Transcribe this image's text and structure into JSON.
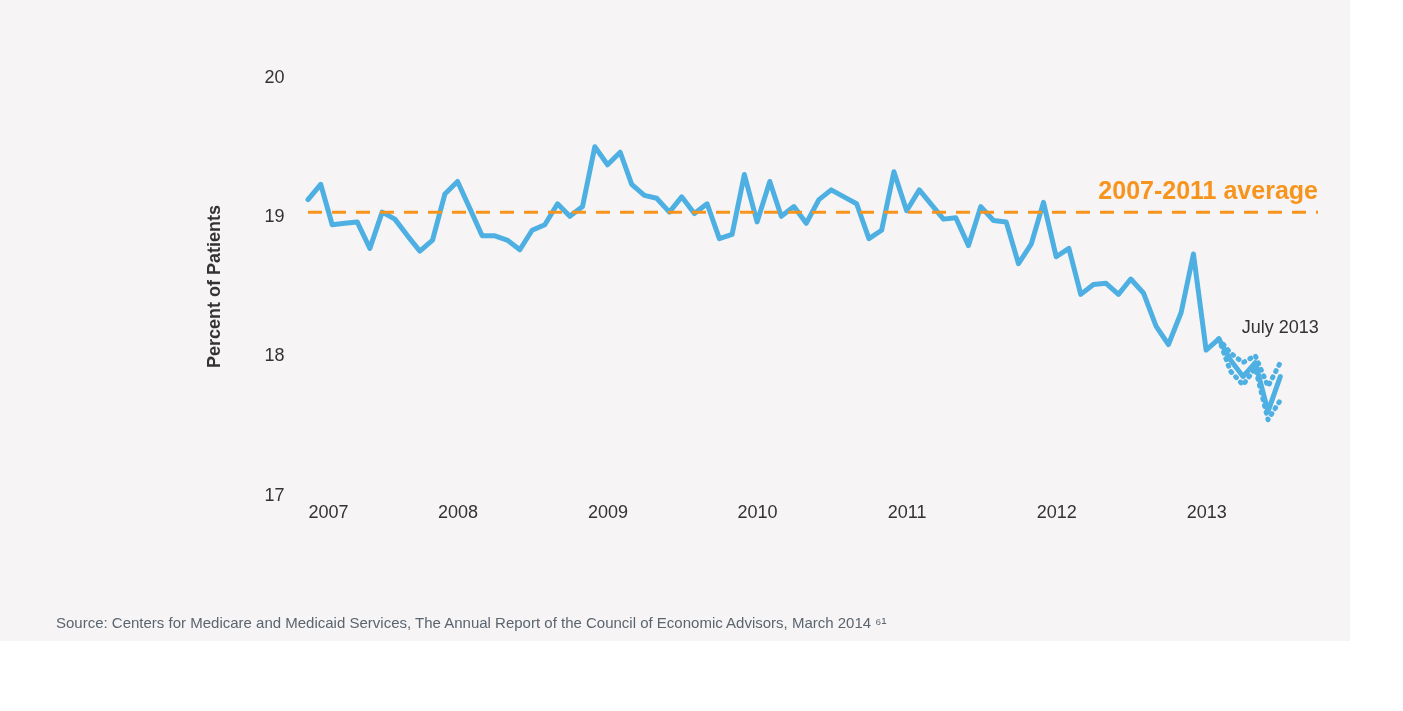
{
  "chart_data": {
    "type": "line",
    "ylabel": "Percent of Patients",
    "x": [
      "2007-01",
      "2007-02",
      "2007-03",
      "2007-04",
      "2007-05",
      "2007-06",
      "2007-07",
      "2007-08",
      "2007-09",
      "2007-10",
      "2007-11",
      "2007-12",
      "2008-01",
      "2008-02",
      "2008-03",
      "2008-04",
      "2008-05",
      "2008-06",
      "2008-07",
      "2008-08",
      "2008-09",
      "2008-10",
      "2008-11",
      "2008-12",
      "2009-01",
      "2009-02",
      "2009-03",
      "2009-04",
      "2009-05",
      "2009-06",
      "2009-07",
      "2009-08",
      "2009-09",
      "2009-10",
      "2009-11",
      "2009-12",
      "2010-01",
      "2010-02",
      "2010-03",
      "2010-04",
      "2010-05",
      "2010-06",
      "2010-07",
      "2010-08",
      "2010-09",
      "2010-10",
      "2010-11",
      "2010-12",
      "2011-01",
      "2011-02",
      "2011-03",
      "2011-04",
      "2011-05",
      "2011-06",
      "2011-07",
      "2011-08",
      "2011-09",
      "2011-10",
      "2011-11",
      "2011-12",
      "2012-01",
      "2012-02",
      "2012-03",
      "2012-04",
      "2012-05",
      "2012-06",
      "2012-07",
      "2012-08",
      "2012-09",
      "2012-10",
      "2012-11",
      "2012-12",
      "2013-01",
      "2013-02",
      "2013-03",
      "2013-04",
      "2013-05",
      "2013-06",
      "2013-07"
    ],
    "series": [
      {
        "color": "#4eb0e2",
        "line_style": "solid",
        "values": [
          19.12,
          19.23,
          18.94,
          18.95,
          18.96,
          18.77,
          19.03,
          18.98,
          18.86,
          18.75,
          18.83,
          19.16,
          19.25,
          19.05,
          18.86,
          18.86,
          18.83,
          18.76,
          18.9,
          18.94,
          19.09,
          19.0,
          19.07,
          19.5,
          19.37,
          19.46,
          19.23,
          19.15,
          19.13,
          19.03,
          19.14,
          19.02,
          19.09,
          18.84,
          18.87,
          19.3,
          18.96,
          19.25,
          19.0,
          19.07,
          18.95,
          19.12,
          19.19,
          19.14,
          19.09,
          18.84,
          18.9,
          19.32,
          19.04,
          19.19,
          19.09,
          18.98,
          18.99,
          18.79,
          19.07,
          18.97,
          18.96,
          18.66,
          18.8,
          19.1,
          18.71,
          18.77,
          18.44,
          18.51,
          18.52,
          18.44,
          18.55,
          18.45,
          18.21,
          18.08,
          18.31,
          18.73,
          18.04,
          18.12,
          17.97,
          17.85,
          17.95,
          17.6,
          17.85
        ]
      },
      {
        "color": "#4eb0e2",
        "line_style": "dotted",
        "x": [
          "2013-02",
          "2013-03",
          "2013-04",
          "2013-05",
          "2013-06",
          "2013-07"
        ],
        "values": [
          18.12,
          18.02,
          17.95,
          18.0,
          17.78,
          17.95
        ]
      },
      {
        "color": "#4eb0e2",
        "line_style": "dotted",
        "x": [
          "2013-02",
          "2013-03",
          "2013-04",
          "2013-05",
          "2013-06",
          "2013-07"
        ],
        "values": [
          18.12,
          17.89,
          17.79,
          17.91,
          17.54,
          17.68
        ]
      }
    ],
    "ref_lines": [
      {
        "axis": "y",
        "value": 19.03,
        "label": "2007-2011 average",
        "color": "#f7941d",
        "line_style": "dashed"
      }
    ],
    "annotations": [
      {
        "text": "July 2013",
        "x": "2013-07",
        "y": 17.85
      },
      "Source: Centers for Medicare and Medicaid Services, The Annual Report of the Council of Economic Advisors, March 2014 ⁶¹"
    ],
    "xlim": [
      "2007-01",
      "2013-10"
    ],
    "xticks": [
      "2007",
      "2008",
      "2009",
      "2010",
      "2011",
      "2012",
      "2013"
    ],
    "ylim": [
      17,
      20
    ],
    "yticks": [
      17,
      18,
      19,
      20
    ],
    "grid": false,
    "marker": "none"
  }
}
